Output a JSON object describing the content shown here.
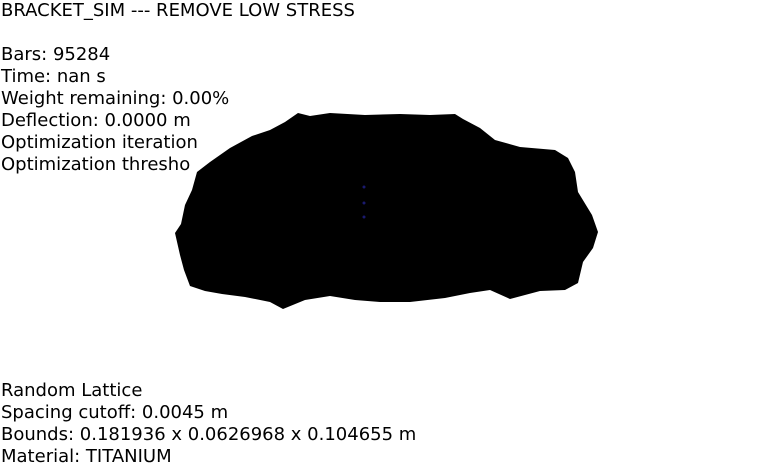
{
  "title": "BRACKET_SIM --- REMOVE LOW STRESS",
  "stats": {
    "bars": "Bars: 95284",
    "time": "Time: nan s",
    "weight": "Weight remaining: 0.00%",
    "deflection": "Deflection: 0.0000 m",
    "iterations": "Optimization iteration",
    "threshold": "Optimization thresho"
  },
  "footer": {
    "lattice": "Random Lattice",
    "spacing": "Spacing cutoff: 0.0045 m",
    "bounds": "Bounds: 0.181936 x 0.0626968 x 0.104655 m",
    "material": "Material: TITANIUM"
  },
  "colors": {
    "background": "#ffffff",
    "lattice_fill": "#000000",
    "marker": "#1a1a6e"
  }
}
